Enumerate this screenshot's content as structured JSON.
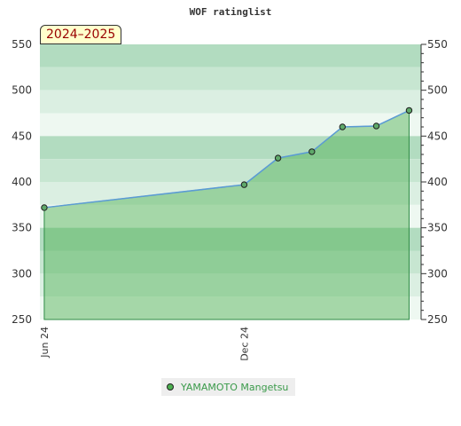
{
  "season_label": "2024–2025",
  "chart_data": {
    "type": "area",
    "title": "WOF ratinglist",
    "xlabel": "",
    "ylabel": "",
    "ylim": [
      250,
      550
    ],
    "yticks": [
      250,
      300,
      350,
      400,
      450,
      500,
      550
    ],
    "xtick_labels": [
      "Jun 24",
      "Dec 24"
    ],
    "grid": "horizontal bands",
    "legend_position": "bottom",
    "series": [
      {
        "name": "YAMAMOTO Mangetsu",
        "color": "#4caf50",
        "line_color": "#5b9bd5",
        "x": [
          "2024-06-01",
          "2024-12-01",
          "2025-01-01",
          "2025-02-01",
          "2025-03-01",
          "2025-04-01",
          "2025-05-01"
        ],
        "values": [
          372,
          397,
          426,
          433,
          460,
          461,
          478
        ]
      }
    ]
  }
}
